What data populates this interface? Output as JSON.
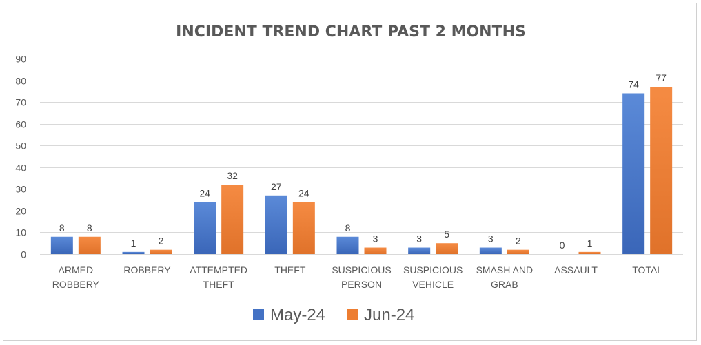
{
  "chart_data": {
    "type": "bar",
    "title": "INCIDENT TREND CHART PAST 2 MONTHS",
    "categories": [
      [
        "ARMED",
        "ROBBERY"
      ],
      [
        "ROBBERY"
      ],
      [
        "ATTEMPTED",
        "THEFT"
      ],
      [
        "THEFT"
      ],
      [
        "SUSPICIOUS",
        "PERSON"
      ],
      [
        "SUSPICIOUS",
        "VEHICLE"
      ],
      [
        "SMASH AND",
        "GRAB"
      ],
      [
        "ASSAULT"
      ],
      [
        "TOTAL"
      ]
    ],
    "series": [
      {
        "name": "May-24",
        "values": [
          8,
          1,
          24,
          27,
          8,
          3,
          3,
          0,
          74
        ],
        "color": "#4472c4"
      },
      {
        "name": "Jun-24",
        "values": [
          8,
          2,
          32,
          24,
          3,
          5,
          2,
          1,
          77
        ],
        "color": "#ed7d31"
      }
    ],
    "ylim": [
      0,
      90
    ],
    "yticks": [
      0,
      10,
      20,
      30,
      40,
      50,
      60,
      70,
      80,
      90
    ],
    "grid": true,
    "legend": "bottom-center",
    "xlabel": "",
    "ylabel": ""
  }
}
